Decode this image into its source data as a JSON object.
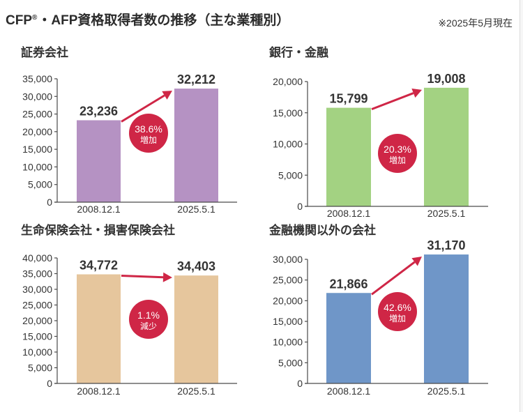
{
  "header": {
    "title_cfp": "CFP",
    "title_reg": "®",
    "title_rest": "・AFP資格取得者数の推移（主な業種別）",
    "note": "※2025年5月現在"
  },
  "colors": {
    "accent": "#cf2646"
  },
  "chart_data": [
    {
      "type": "bar",
      "title": "証券会社",
      "categories": [
        "2008.12.1",
        "2025.5.1"
      ],
      "values": [
        23236,
        32212
      ],
      "value_labels": [
        "23,236",
        "32,212"
      ],
      "ylim": [
        0,
        35000
      ],
      "yticks": [
        0,
        5000,
        10000,
        15000,
        20000,
        25000,
        30000,
        35000
      ],
      "ytick_labels": [
        "0",
        "5,000",
        "10,000",
        "15,000",
        "20,000",
        "25,000",
        "30,000",
        "35,000"
      ],
      "bar_color": "#b592c3",
      "change": {
        "rate": "38.6%",
        "label": "増加"
      }
    },
    {
      "type": "bar",
      "title": "銀行・金融",
      "categories": [
        "2008.12.1",
        "2025.5.1"
      ],
      "values": [
        15799,
        19008
      ],
      "value_labels": [
        "15,799",
        "19,008"
      ],
      "ylim": [
        0,
        20000
      ],
      "yticks": [
        0,
        5000,
        10000,
        15000,
        20000
      ],
      "ytick_labels": [
        "0",
        "5,000",
        "10,000",
        "15,000",
        "20,000"
      ],
      "bar_color": "#a3d282",
      "change": {
        "rate": "20.3%",
        "label": "増加"
      }
    },
    {
      "type": "bar",
      "title": "生命保険会社・損害保険会社",
      "categories": [
        "2008.12.1",
        "2025.5.1"
      ],
      "values": [
        34772,
        34403
      ],
      "value_labels": [
        "34,772",
        "34,403"
      ],
      "ylim": [
        0,
        40000
      ],
      "yticks": [
        0,
        5000,
        10000,
        15000,
        20000,
        25000,
        30000,
        35000,
        40000
      ],
      "ytick_labels": [
        "0",
        "5,000",
        "10,000",
        "15,000",
        "20,000",
        "25,000",
        "30,000",
        "35,000",
        "40,000"
      ],
      "bar_color": "#e6c69d",
      "change": {
        "rate": "1.1%",
        "label": "減少"
      }
    },
    {
      "type": "bar",
      "title": "金融機関以外の会社",
      "categories": [
        "2008.12.1",
        "2025.5.1"
      ],
      "values": [
        21866,
        31170
      ],
      "value_labels": [
        "21,866",
        "31,170"
      ],
      "ylim": [
        0,
        30000
      ],
      "yticks": [
        0,
        5000,
        10000,
        15000,
        20000,
        25000,
        30000
      ],
      "ytick_labels": [
        "0",
        "5,000",
        "10,000",
        "15,000",
        "20,000",
        "25,000",
        "30,000"
      ],
      "bar_color": "#6f96c8",
      "change": {
        "rate": "42.6%",
        "label": "増加"
      }
    }
  ]
}
